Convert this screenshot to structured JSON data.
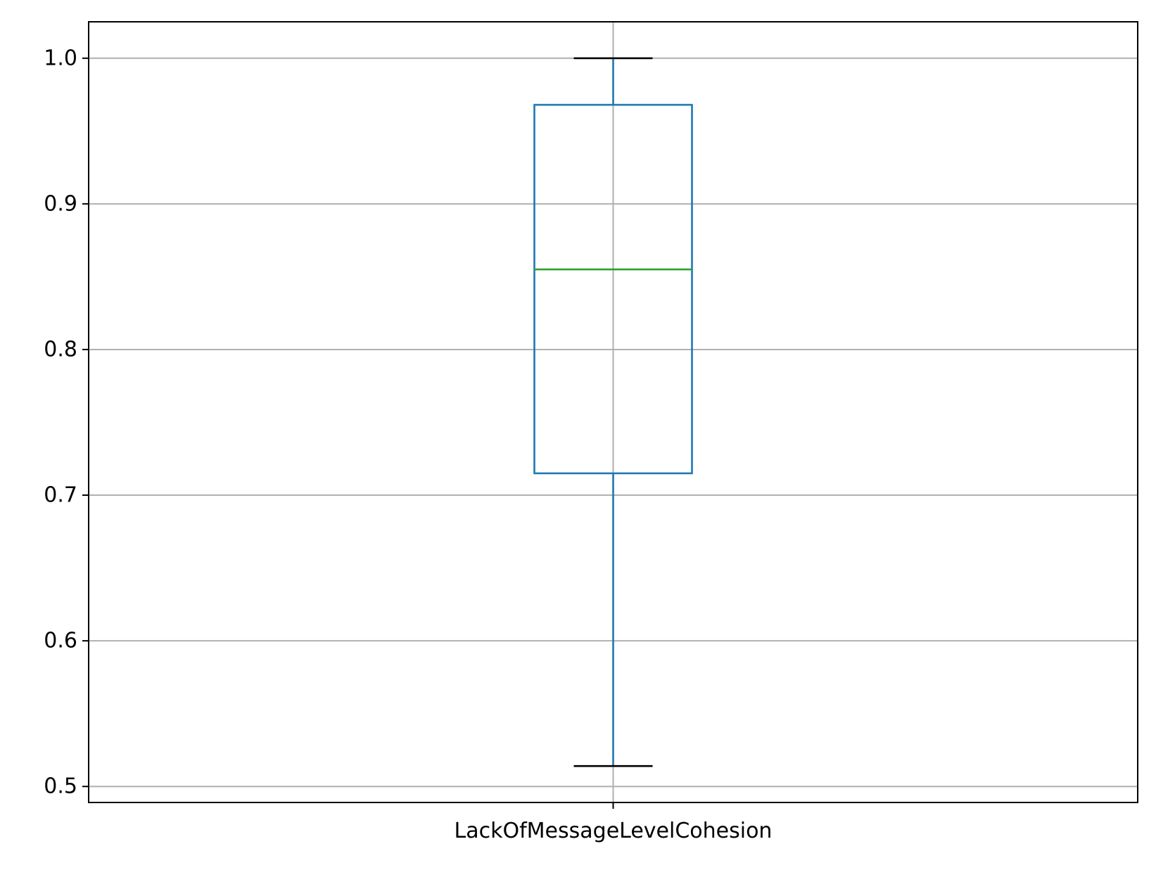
{
  "chart_data": {
    "type": "boxplot",
    "categories": [
      "LackOfMessageLevelCohesion"
    ],
    "boxes": [
      {
        "category": "LackOfMessageLevelCohesion",
        "whisker_low": 0.514,
        "q1": 0.715,
        "median": 0.855,
        "q3": 0.968,
        "whisker_high": 1.0
      }
    ],
    "y_ticks": [
      {
        "value": 0.5,
        "label": "0.5"
      },
      {
        "value": 0.6,
        "label": "0.6"
      },
      {
        "value": 0.7,
        "label": "0.7"
      },
      {
        "value": 0.8,
        "label": "0.8"
      },
      {
        "value": 0.9,
        "label": "0.9"
      },
      {
        "value": 1.0,
        "label": "1.0"
      }
    ],
    "ylim": [
      0.489,
      1.025
    ],
    "grid": true,
    "title": "",
    "xlabel": "",
    "ylabel": "",
    "colors": {
      "box": "#1f77b4",
      "median": "#2ca02c",
      "caps": "#000000",
      "grid": "#b0b0b0",
      "axes": "#000000"
    }
  }
}
